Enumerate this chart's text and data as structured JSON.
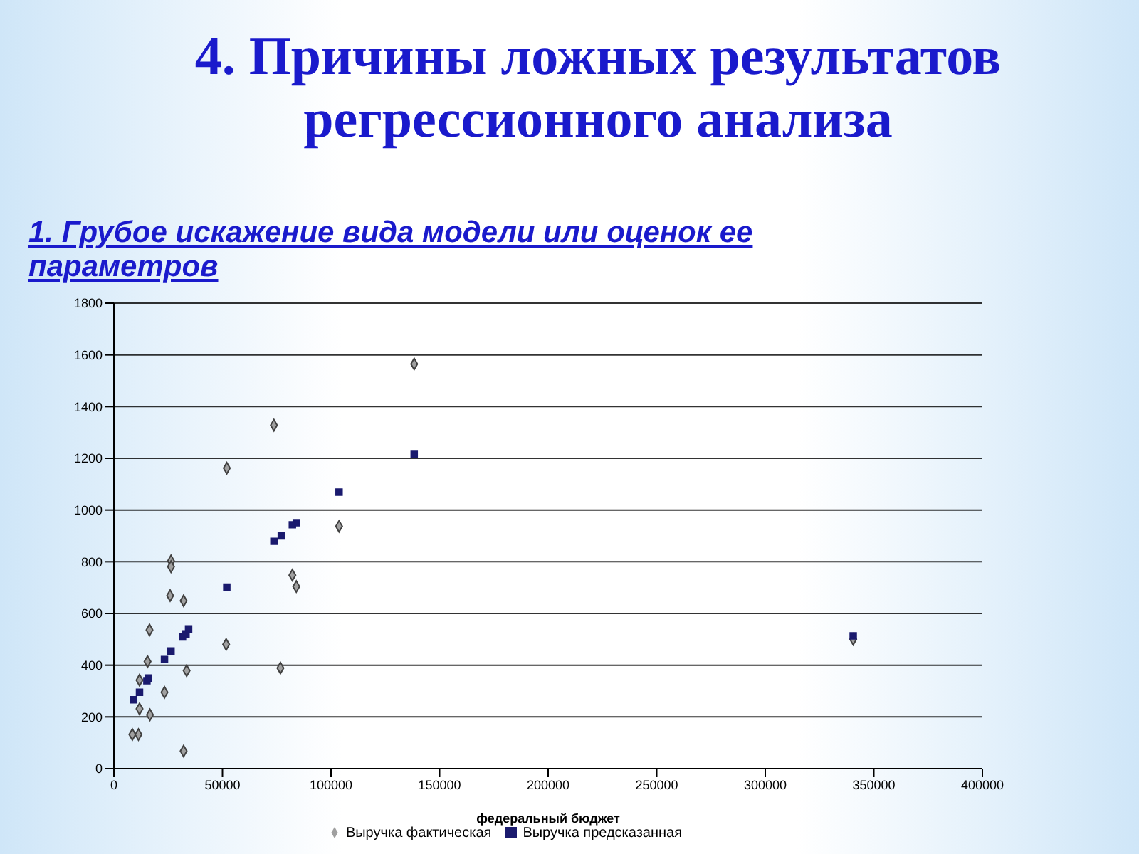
{
  "chart_data": {
    "type": "scatter",
    "title": "4. Причины ложных результатов регрессионного анализа",
    "subtitle": "1. Грубое искажение вида модели или оценок ее параметров",
    "xlabel": "федеральный бюджет",
    "xlim": [
      0,
      400000
    ],
    "xticks": [
      0,
      50000,
      100000,
      150000,
      200000,
      250000,
      300000,
      350000,
      400000
    ],
    "ylim": [
      0,
      1800
    ],
    "yticks": [
      0,
      200,
      400,
      600,
      800,
      1000,
      1200,
      1400,
      1600,
      1800
    ],
    "grid": "y",
    "legend": "bottom",
    "series": [
      {
        "name": "Выручка фактическая",
        "color": "#a0a0a0",
        "marker": "diamond",
        "x": [
          138300,
          73700,
          52000,
          103700,
          26300,
          26300,
          82200,
          84000,
          25900,
          32100,
          16400,
          51700,
          15500,
          76700,
          33500,
          11800,
          23300,
          11800,
          16600,
          8500,
          11300,
          32100,
          340500
        ],
        "values": [
          1565,
          1328,
          1162,
          937,
          803,
          781,
          748,
          704,
          669,
          649,
          536,
          480,
          414,
          389,
          379,
          342,
          295,
          231,
          208,
          132,
          132,
          68,
          500
        ]
      },
      {
        "name": "Выручка предсказанная",
        "color": "#1a1a6e",
        "marker": "square",
        "x": [
          138300,
          103700,
          84000,
          82200,
          77100,
          73700,
          52000,
          34400,
          33200,
          31600,
          26300,
          23300,
          15900,
          15200,
          11800,
          9000,
          340500
        ],
        "values": [
          1215,
          1069,
          951,
          943,
          900,
          879,
          702,
          540,
          521,
          509,
          455,
          422,
          350,
          340,
          295,
          266,
          513
        ]
      }
    ]
  }
}
